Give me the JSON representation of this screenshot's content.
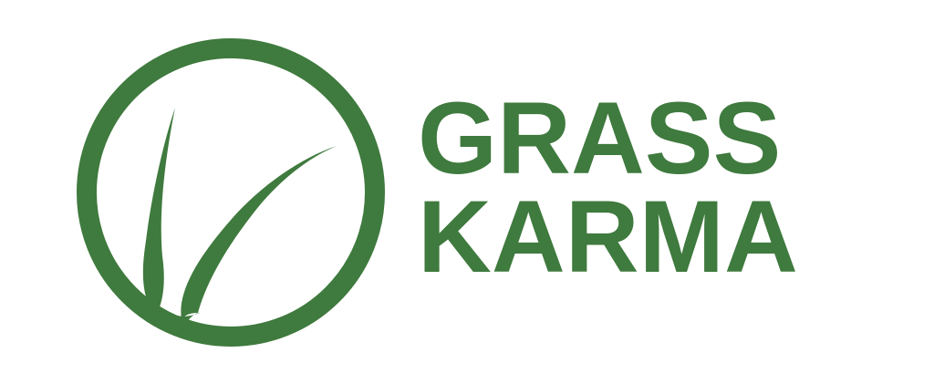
{
  "brand": {
    "line1": "GRASS",
    "line2": "KARMA",
    "color": "#3f7a3e",
    "emblem_icon": "grass-blade-circle-icon"
  }
}
